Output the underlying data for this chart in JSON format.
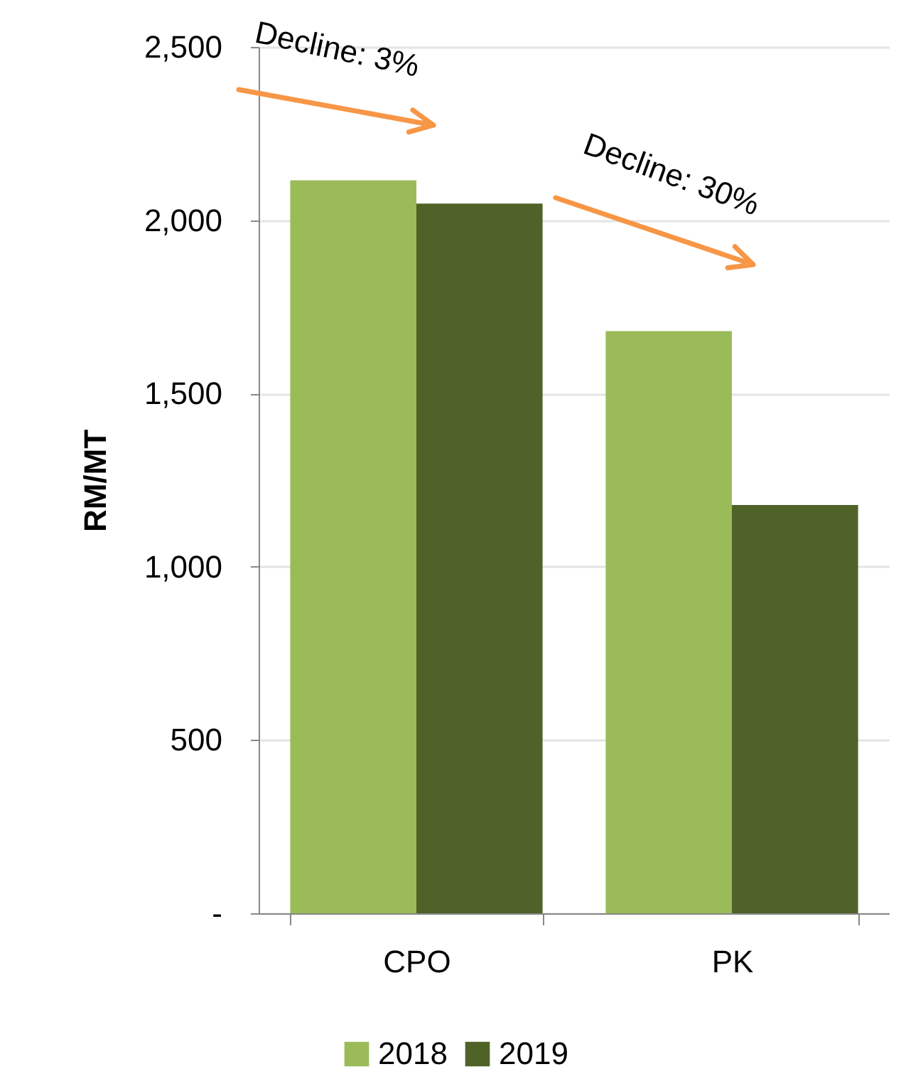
{
  "chart_data": {
    "type": "bar",
    "ylabel": "RM/MT",
    "categories": [
      "CPO",
      "PK"
    ],
    "series": [
      {
        "name": "2018",
        "color": "#9bbb59",
        "values": [
          2115,
          1680
        ]
      },
      {
        "name": "2019",
        "color": "#4f6228",
        "values": [
          2048,
          1178
        ]
      }
    ],
    "ylim": [
      0,
      2500
    ],
    "yticks": [
      {
        "value": 0,
        "label": "-"
      },
      500,
      {
        "value": 1000,
        "label": "1,000"
      },
      {
        "value": 1500,
        "label": "1,500"
      },
      {
        "value": 2000,
        "label": "2,000"
      },
      {
        "value": 2500,
        "label": "2,500"
      }
    ],
    "grid": "y",
    "legend": "bottom",
    "annotations": [
      "Decline: 3%",
      "Decline: 30%"
    ]
  }
}
